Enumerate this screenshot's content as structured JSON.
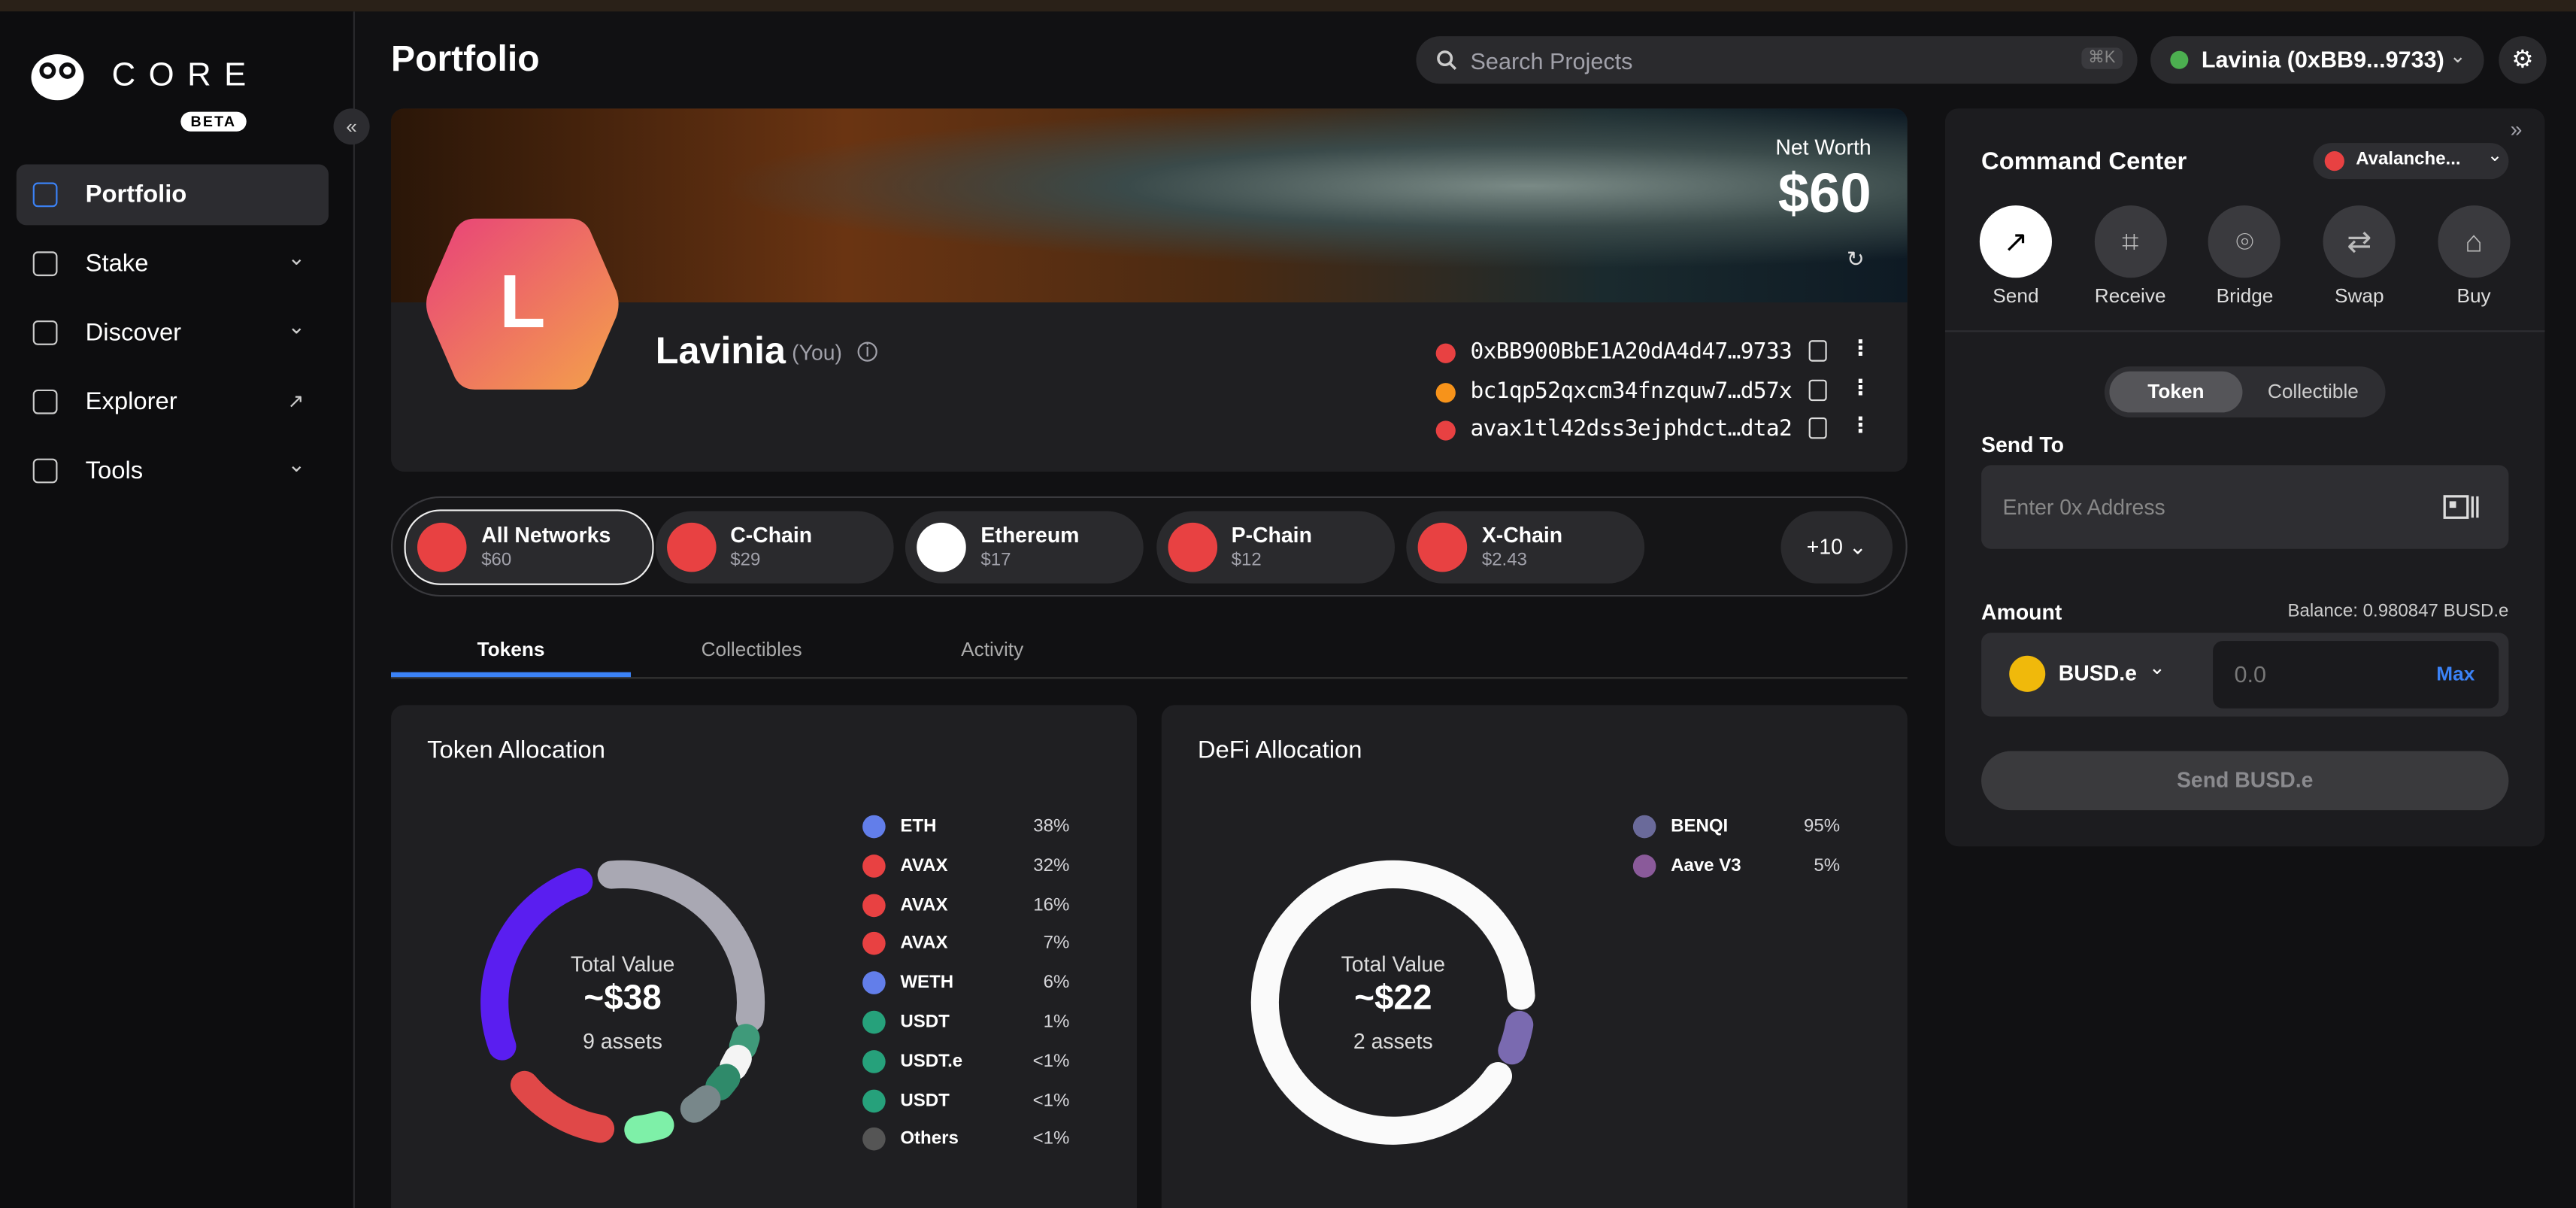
{
  "app": {
    "logo": "CORE",
    "badge": "BETA"
  },
  "nav": [
    "Portfolio",
    "Stake",
    "Discover",
    "Explorer",
    "Tools"
  ],
  "header": {
    "title": "Portfolio",
    "search_placeholder": "Search Projects",
    "shortcut": "⌘K",
    "account": "Lavinia (0xBB9...9733)"
  },
  "profile": {
    "avatar": "L",
    "name": "Lavinia",
    "you": "(You)",
    "net_worth_label": "Net Worth",
    "net_worth": "$60",
    "addresses": [
      "0xBB900BbE1A20dA4d47…9733",
      "bc1qp52qxcm34fnzquw7…d57x",
      "avax1tl42dss3ejphdct…dta2"
    ]
  },
  "networks": [
    {
      "name": "All Networks",
      "value": "$60"
    },
    {
      "name": "C-Chain",
      "value": "$29"
    },
    {
      "name": "Ethereum",
      "value": "$17"
    },
    {
      "name": "P-Chain",
      "value": "$12"
    },
    {
      "name": "X-Chain",
      "value": "$2.43"
    }
  ],
  "more_networks": "+10",
  "tabs": [
    "Tokens",
    "Collectibles",
    "Activity"
  ],
  "token_allocation": {
    "title": "Token Allocation",
    "total_label": "Total Value",
    "total": "~$38",
    "count": "9 assets",
    "items": [
      {
        "name": "ETH",
        "share": "38%"
      },
      {
        "name": "AVAX",
        "share": "32%"
      },
      {
        "name": "AVAX",
        "share": "16%"
      },
      {
        "name": "AVAX",
        "share": "7%"
      },
      {
        "name": "WETH",
        "share": "6%"
      },
      {
        "name": "USDT",
        "share": "1%"
      },
      {
        "name": "USDT.e",
        "share": "<1%"
      },
      {
        "name": "USDT",
        "share": "<1%"
      },
      {
        "name": "Others",
        "share": "<1%"
      }
    ]
  },
  "defi_allocation": {
    "title": "DeFi Allocation",
    "total_label": "Total Value",
    "total": "~$22",
    "count": "2 assets",
    "items": [
      {
        "name": "BENQI",
        "share": "95%"
      },
      {
        "name": "Aave V3",
        "share": "5%"
      }
    ]
  },
  "command_center": {
    "title": "Command Center",
    "network": "Avalanche...",
    "actions": [
      "Send",
      "Receive",
      "Bridge",
      "Swap",
      "Buy"
    ],
    "toggle": [
      "Token",
      "Collectible"
    ],
    "send_to_label": "Send To",
    "address_placeholder": "Enter 0x Address",
    "amount_label": "Amount",
    "balance": "Balance: 0.980847 BUSD.e",
    "token": "BUSD.e",
    "amount_placeholder": "0.0",
    "max": "Max",
    "submit": "Send BUSD.e"
  }
}
